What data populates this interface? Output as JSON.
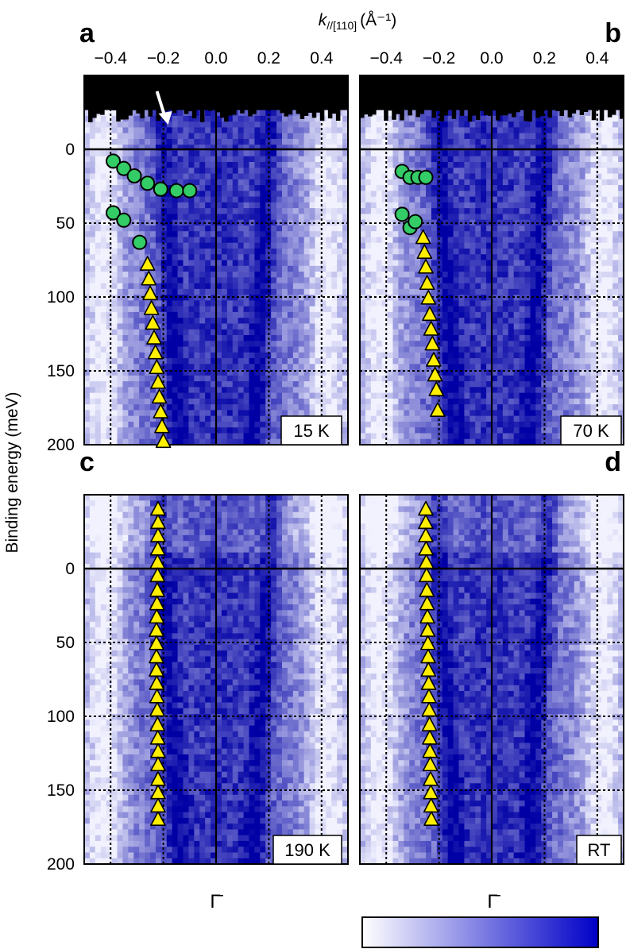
{
  "figure": {
    "xlabel_main": "k",
    "xlabel_sub": "//[110]",
    "xlabel_unit": "(Å⁻¹)",
    "ylabel": "Binding energy (meV)",
    "gamma_label": "Γ̄",
    "colorbar": {
      "from": "#ffffff",
      "to": "#0000c8"
    }
  },
  "chart_data": [
    {
      "panel": "a",
      "type": "heatmap",
      "temperature_label": "15 K",
      "xlim": [
        -0.5,
        0.5
      ],
      "ylim": [
        200,
        -50
      ],
      "xticks": [
        "−0.4",
        "−0.2",
        "0.0",
        "0.2",
        "0.4"
      ],
      "yticks": [
        "0",
        "50",
        "100",
        "150",
        "200"
      ],
      "grid": "dotted at k = ±0.4, ±0.2; dotted at E = 50, 100, 150; solid at k = 0 and E = 0",
      "arrow_annotation": {
        "k": -0.2,
        "pointing": "down"
      },
      "series": [
        {
          "marker": "circle",
          "color": "#33cc66",
          "x": [
            -0.39,
            -0.35,
            -0.31,
            -0.26,
            -0.21,
            -0.15,
            -0.1
          ],
          "y": [
            8,
            13,
            18,
            23,
            27,
            28,
            28
          ]
        },
        {
          "marker": "circle",
          "color": "#33cc66",
          "x": [
            -0.39,
            -0.35,
            -0.29
          ],
          "y": [
            43,
            48,
            63
          ]
        },
        {
          "marker": "triangle",
          "color": "#ffee00",
          "x": [
            -0.26,
            -0.255,
            -0.25,
            -0.245,
            -0.24,
            -0.235,
            -0.23,
            -0.225,
            -0.22,
            -0.215,
            -0.21,
            -0.205,
            -0.2
          ],
          "y": [
            78,
            88,
            98,
            108,
            118,
            128,
            138,
            148,
            158,
            168,
            178,
            188,
            198
          ]
        }
      ]
    },
    {
      "panel": "b",
      "type": "heatmap",
      "temperature_label": "70 K",
      "xlim": [
        -0.5,
        0.5
      ],
      "ylim": [
        200,
        -50
      ],
      "xticks": [
        "−0.4",
        "−0.2",
        "0.0",
        "0.2",
        "0.4"
      ],
      "series": [
        {
          "marker": "circle",
          "color": "#33cc66",
          "x": [
            -0.34,
            -0.31,
            -0.28,
            -0.25
          ],
          "y": [
            15,
            19,
            19,
            19
          ]
        },
        {
          "marker": "circle",
          "color": "#33cc66",
          "x": [
            -0.34,
            -0.31,
            -0.29
          ],
          "y": [
            44,
            53,
            49
          ]
        },
        {
          "marker": "triangle",
          "color": "#ffee00",
          "x": [
            -0.26,
            -0.255,
            -0.25,
            -0.245,
            -0.24,
            -0.235,
            -0.23,
            -0.225,
            -0.22,
            -0.215,
            -0.21,
            -0.205
          ],
          "y": [
            60,
            70,
            80,
            91,
            101,
            112,
            122,
            132,
            143,
            153,
            163,
            177
          ]
        }
      ]
    },
    {
      "panel": "c",
      "type": "heatmap",
      "temperature_label": "190 K",
      "xlim": [
        -0.5,
        0.5
      ],
      "ylim": [
        200,
        -50
      ],
      "yticks": [
        "0",
        "50",
        "100",
        "150",
        "200"
      ],
      "series": [
        {
          "marker": "triangle",
          "color": "#ffee00",
          "x": [
            -0.22,
            -0.22,
            -0.22,
            -0.221,
            -0.222,
            -0.222,
            -0.223,
            -0.224,
            -0.225,
            -0.226,
            -0.226,
            -0.226,
            -0.226,
            -0.225,
            -0.224,
            -0.223,
            -0.222,
            -0.221,
            -0.22,
            -0.22,
            -0.22,
            -0.22,
            -0.22,
            -0.22
          ],
          "y": [
            -40,
            -31,
            -22,
            -13,
            -4,
            5,
            15,
            24,
            33,
            42,
            51,
            60,
            69,
            78,
            87,
            96,
            106,
            115,
            124,
            133,
            143,
            152,
            161,
            170
          ]
        }
      ]
    },
    {
      "panel": "d",
      "type": "heatmap",
      "temperature_label": "RT",
      "xlim": [
        -0.5,
        0.5
      ],
      "ylim": [
        200,
        -50
      ],
      "series": [
        {
          "marker": "triangle",
          "color": "#ffee00",
          "x": [
            -0.25,
            -0.25,
            -0.25,
            -0.249,
            -0.248,
            -0.247,
            -0.246,
            -0.245,
            -0.244,
            -0.243,
            -0.242,
            -0.241,
            -0.24,
            -0.239,
            -0.238,
            -0.237,
            -0.236,
            -0.235,
            -0.234,
            -0.233,
            -0.232,
            -0.231,
            -0.23,
            -0.229
          ],
          "y": [
            -40,
            -31,
            -22,
            -13,
            -4,
            5,
            15,
            24,
            33,
            42,
            51,
            60,
            69,
            78,
            87,
            96,
            106,
            115,
            124,
            133,
            143,
            152,
            161,
            170
          ]
        }
      ]
    }
  ]
}
